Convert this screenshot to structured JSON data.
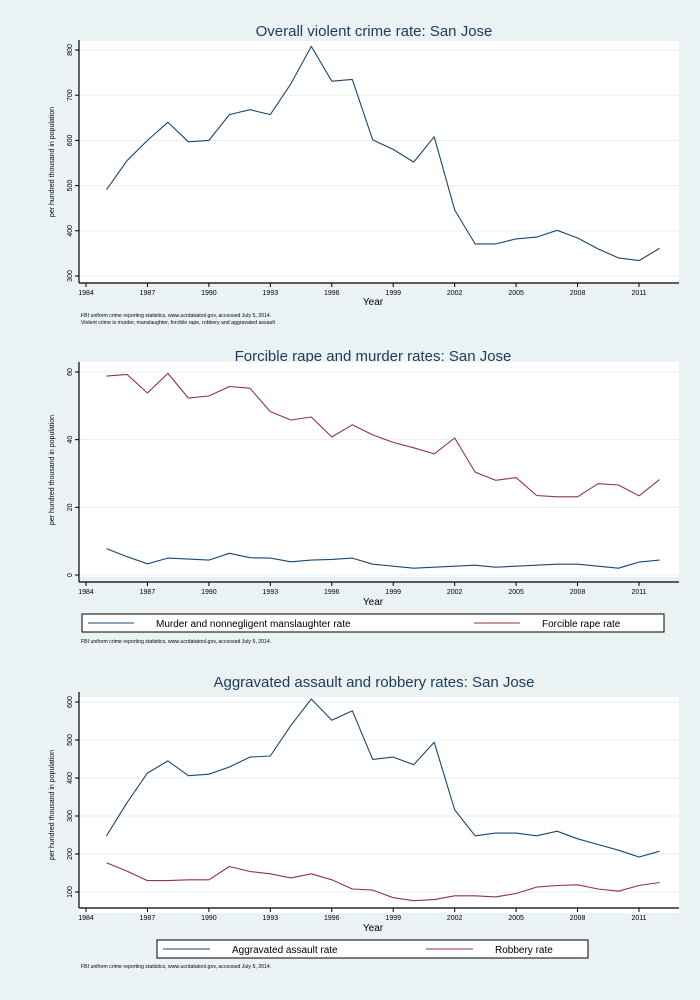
{
  "chart_data": [
    {
      "type": "line",
      "title": "Overall violent crime rate: San Jose",
      "xlabel": "Year",
      "ylabel": "per hundred thousand in population",
      "xlim": [
        1984,
        2012
      ],
      "ylim": [
        300,
        800
      ],
      "xticks": [
        1984,
        1987,
        1990,
        1993,
        1996,
        1999,
        2002,
        2005,
        2008,
        2011
      ],
      "yticks": [
        300,
        400,
        500,
        600,
        700,
        800
      ],
      "grid": true,
      "legend": null,
      "notes": [
        "FBI uniform crime reporting statistics, www.ucrdatatool.gov, accessed July 5, 2014.",
        "Violent crime is murder, manslaughter, forcible rape, robbery and aggravated assault"
      ],
      "x": [
        1985,
        1986,
        1987,
        1988,
        1989,
        1990,
        1991,
        1992,
        1993,
        1994,
        1995,
        1996,
        1997,
        1998,
        1999,
        2000,
        2001,
        2002,
        2003,
        2004,
        2005,
        2006,
        2007,
        2008,
        2009,
        2010,
        2011,
        2012
      ],
      "series": [
        {
          "name": "Violent crime rate",
          "color": "#1a476f",
          "values": [
            491,
            555,
            600,
            640,
            597,
            600,
            657,
            668,
            657,
            725,
            808,
            731,
            735,
            601,
            580,
            552,
            608,
            446,
            371,
            371,
            382,
            386,
            401,
            384,
            360,
            340,
            334,
            361
          ]
        }
      ]
    },
    {
      "type": "line",
      "title": "Forcible rape and murder rates: San Jose",
      "xlabel": "Year",
      "ylabel": "per hundred thousand in population",
      "xlim": [
        1984,
        2012
      ],
      "ylim": [
        0,
        60
      ],
      "xticks": [
        1984,
        1987,
        1990,
        1993,
        1996,
        1999,
        2002,
        2005,
        2008,
        2011
      ],
      "yticks": [
        0,
        20,
        40,
        60
      ],
      "grid": true,
      "legend": "bottom",
      "notes": [
        "FBI uniform crime reporting statistics, www.ucrdatatool.gov, accessed July 5, 2014."
      ],
      "x": [
        1985,
        1986,
        1987,
        1988,
        1989,
        1990,
        1991,
        1992,
        1993,
        1994,
        1995,
        1996,
        1997,
        1998,
        1999,
        2000,
        2001,
        2002,
        2003,
        2004,
        2005,
        2006,
        2007,
        2008,
        2009,
        2010,
        2011,
        2012
      ],
      "series": [
        {
          "name": "Murder and nonnegligent manslaughter rate",
          "color": "#1a476f",
          "values": [
            7.8,
            5.4,
            3.3,
            5.0,
            4.7,
            4.4,
            6.4,
            5.1,
            5.0,
            3.9,
            4.4,
            4.6,
            5.0,
            3.2,
            2.6,
            2.0,
            2.3,
            2.6,
            2.9,
            2.3,
            2.6,
            2.9,
            3.2,
            3.2,
            2.6,
            2.0,
            3.8,
            4.4
          ]
        },
        {
          "name": "Forcible rape rate",
          "color": "#90353b",
          "values": [
            58.8,
            59.3,
            53.8,
            59.6,
            52.3,
            52.9,
            55.7,
            55.2,
            48.3,
            45.8,
            46.7,
            40.8,
            44.4,
            41.4,
            39.2,
            37.6,
            35.8,
            40.5,
            30.4,
            28.0,
            28.8,
            23.5,
            23.1,
            23.1,
            27.0,
            26.6,
            23.4,
            28.2
          ]
        }
      ]
    },
    {
      "type": "line",
      "title": "Aggravated assault and robbery rates: San Jose",
      "xlabel": "Year",
      "ylabel": "per hundred thousand in population",
      "xlim": [
        1984,
        2012
      ],
      "ylim": [
        60,
        625
      ],
      "xticks": [
        1984,
        1987,
        1990,
        1993,
        1996,
        1999,
        2002,
        2005,
        2008,
        2011
      ],
      "yticks": [
        100,
        200,
        300,
        400,
        500,
        600
      ],
      "grid": true,
      "legend": "bottom",
      "notes": [
        "FBI uniform crime reporting statistics, www.ucrdatatool.gov, accessed July 5, 2014."
      ],
      "x": [
        1985,
        1986,
        1987,
        1988,
        1989,
        1990,
        1991,
        1992,
        1993,
        1994,
        1995,
        1996,
        1997,
        1998,
        1999,
        2000,
        2001,
        2002,
        2003,
        2004,
        2005,
        2006,
        2007,
        2008,
        2009,
        2010,
        2011,
        2012
      ],
      "series": [
        {
          "name": "Aggravated assault rate",
          "color": "#1a476f",
          "values": [
            248,
            335,
            413,
            445,
            406,
            410,
            429,
            455,
            458,
            538,
            608,
            552,
            577,
            449,
            455,
            435,
            494,
            316,
            248,
            255,
            255,
            248,
            260,
            240,
            225,
            210,
            192,
            207
          ]
        },
        {
          "name": "Robbery rate",
          "color": "#90353b",
          "values": [
            177,
            155,
            130,
            130,
            132,
            132,
            167,
            154,
            148,
            137,
            148,
            132,
            108,
            105,
            85,
            77,
            80,
            90,
            90,
            87,
            96,
            113,
            117,
            119,
            108,
            102,
            117,
            125
          ]
        }
      ]
    }
  ]
}
